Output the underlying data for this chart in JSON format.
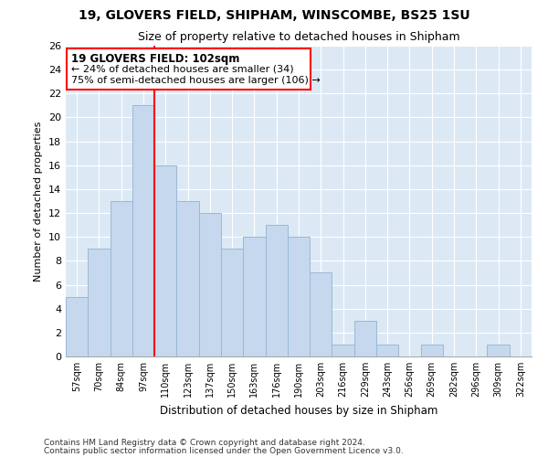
{
  "title1": "19, GLOVERS FIELD, SHIPHAM, WINSCOMBE, BS25 1SU",
  "title2": "Size of property relative to detached houses in Shipham",
  "xlabel": "Distribution of detached houses by size in Shipham",
  "ylabel": "Number of detached properties",
  "categories": [
    "57sqm",
    "70sqm",
    "84sqm",
    "97sqm",
    "110sqm",
    "123sqm",
    "137sqm",
    "150sqm",
    "163sqm",
    "176sqm",
    "190sqm",
    "203sqm",
    "216sqm",
    "229sqm",
    "243sqm",
    "256sqm",
    "269sqm",
    "282sqm",
    "296sqm",
    "309sqm",
    "322sqm"
  ],
  "values": [
    5,
    9,
    13,
    21,
    16,
    13,
    12,
    9,
    10,
    11,
    10,
    7,
    1,
    3,
    1,
    0,
    1,
    0,
    0,
    1,
    0
  ],
  "bar_color": "#c5d8ed",
  "bar_edge_color": "#9ab8d5",
  "grid_color": "#c8d8e8",
  "background_color": "#dce9f5",
  "red_line_x": 3.5,
  "annotation_title": "19 GLOVERS FIELD: 102sqm",
  "annotation_line2": "← 24% of detached houses are smaller (34)",
  "annotation_line3": "75% of semi-detached houses are larger (106) →",
  "ylim": [
    0,
    26
  ],
  "yticks": [
    0,
    2,
    4,
    6,
    8,
    10,
    12,
    14,
    16,
    18,
    20,
    22,
    24,
    26
  ],
  "footer1": "Contains HM Land Registry data © Crown copyright and database right 2024.",
  "footer2": "Contains public sector information licensed under the Open Government Licence v3.0."
}
